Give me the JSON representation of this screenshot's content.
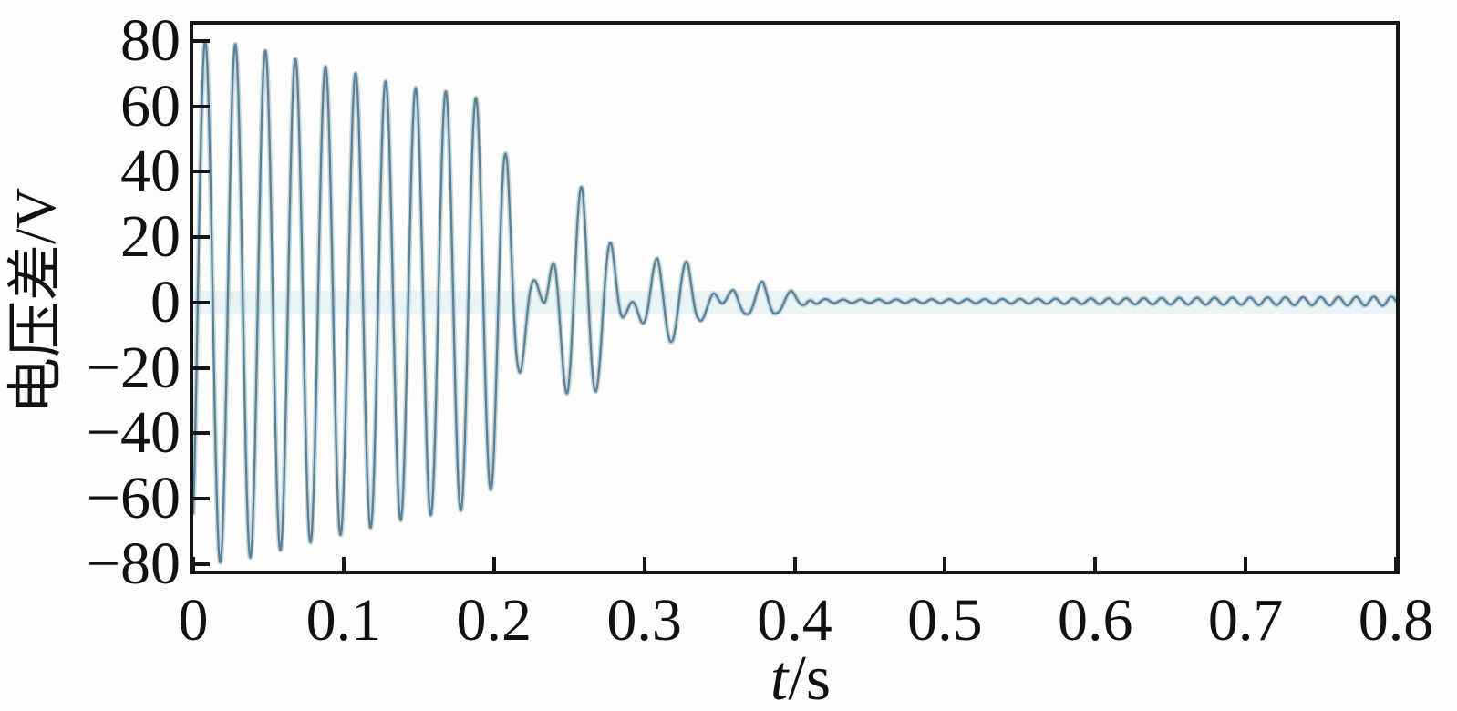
{
  "figure": {
    "background": "#fdfdfb",
    "axis_color": "#161616",
    "line_color": "#5e8295",
    "line_halo_color": "#9dbac8",
    "ylabel": "电压差/V",
    "xlabel_var": "t",
    "xlabel_unit": "/s",
    "xticks": [
      "0",
      "0.1",
      "0.2",
      "0.3",
      "0.4",
      "0.5",
      "0.6",
      "0.7",
      "0.8"
    ],
    "yticks": [
      "80",
      "60",
      "40",
      "20",
      "0",
      "−20",
      "−40",
      "−60",
      "−80"
    ]
  },
  "chart_data": {
    "type": "line",
    "title": "",
    "xlabel": "t/s",
    "ylabel": "电压差/V",
    "x_unit": "s",
    "y_unit": "V",
    "xlim": [
      0,
      0.8
    ],
    "ylim": [
      -82,
      85
    ],
    "xtick_values": [
      0,
      0.1,
      0.2,
      0.3,
      0.4,
      0.5,
      0.6,
      0.7,
      0.8
    ],
    "ytick_values": [
      80,
      60,
      40,
      20,
      0,
      -20,
      -40,
      -60,
      -80
    ],
    "grid": false,
    "legend": null,
    "series": [
      {
        "name": "电压差",
        "color": "#5e8295",
        "model": {
          "description": "Decaying power-frequency oscillation: v(t) = envelope(t) * sin(phase(t)) + dc(t); 50 Hz ringing (80 V peak) decays to ~62 V by 0.19 s, collapses through beating transients (nodes near 0.233, 0.292, 0.352 s), and settles to a small ~85 Hz ripple after 0.41 s.",
          "main_freq_hz": 50,
          "phase_rad": -0.93,
          "tail_freq_hz": 85,
          "tail_start_s": 0.41,
          "tail_dc_v": 0.4,
          "tail_dc_start_s": 0.408,
          "envelope_breakpoints": [
            [
              0.0,
              80.5
            ],
            [
              0.008,
              80.0
            ],
            [
              0.028,
              79.0
            ],
            [
              0.048,
              77.0
            ],
            [
              0.068,
              74.5
            ],
            [
              0.089,
              72.0
            ],
            [
              0.109,
              70.0
            ],
            [
              0.129,
              67.5
            ],
            [
              0.149,
              65.5
            ],
            [
              0.169,
              64.5
            ],
            [
              0.189,
              62.5
            ],
            [
              0.2,
              56.0
            ],
            [
              0.209,
              44.0
            ],
            [
              0.216,
              24.0
            ],
            [
              0.225,
              9.0
            ],
            [
              0.233,
              1.5
            ],
            [
              0.241,
              -17.0
            ],
            [
              0.249,
              -29.0
            ],
            [
              0.259,
              -36.0
            ],
            [
              0.268,
              -27.0
            ],
            [
              0.278,
              -18.0
            ],
            [
              0.287,
              -4.0
            ],
            [
              0.294,
              2.5
            ],
            [
              0.303,
              10.0
            ],
            [
              0.309,
              14.0
            ],
            [
              0.318,
              12.0
            ],
            [
              0.329,
              12.5
            ],
            [
              0.336,
              6.0
            ],
            [
              0.346,
              3.4
            ],
            [
              0.353,
              -1.5
            ],
            [
              0.36,
              -4.4
            ],
            [
              0.368,
              -3.5
            ],
            [
              0.379,
              -6.6
            ],
            [
              0.388,
              -3.2
            ],
            [
              0.398,
              -3.6
            ],
            [
              0.405,
              -1.2
            ],
            [
              0.412,
              0.8
            ],
            [
              0.43,
              0.5
            ],
            [
              0.5,
              0.6
            ],
            [
              0.55,
              0.7
            ],
            [
              0.6,
              0.85
            ],
            [
              0.65,
              1.0
            ],
            [
              0.7,
              1.1
            ],
            [
              0.75,
              1.25
            ],
            [
              0.8,
              1.4
            ]
          ]
        }
      }
    ]
  }
}
